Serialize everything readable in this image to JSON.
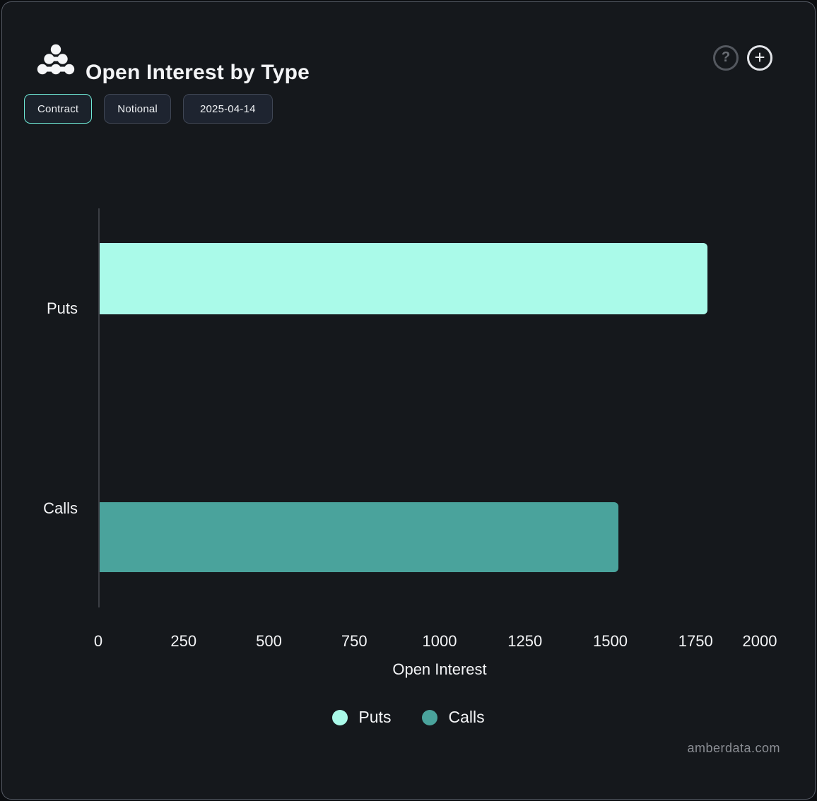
{
  "header": {
    "title": "Open Interest by Type",
    "help_glyph": "?",
    "add_glyph": "+"
  },
  "toolbar": {
    "buttons": [
      {
        "label": "Contract",
        "active": true
      },
      {
        "label": "Notional",
        "active": false
      },
      {
        "label": "2025-04-14",
        "active": false
      }
    ]
  },
  "watermark": "amberdata.com",
  "colors": {
    "card_background": "#15181c",
    "card_border": "#575c66",
    "puts": "#aafae9",
    "calls": "#4aa39c",
    "active_chip_border": "#6fe9d6",
    "axis_line": "#3b3e44",
    "text": "#f3f4f6"
  },
  "chart_data": {
    "type": "bar",
    "orientation": "horizontal",
    "title": "Open Interest by Type",
    "categories": [
      "Puts",
      "Calls"
    ],
    "series": [
      {
        "name": "Puts",
        "color": "#aafae9",
        "values": [
          1780,
          null
        ]
      },
      {
        "name": "Calls",
        "color": "#4aa39c",
        "values": [
          null,
          1520
        ]
      }
    ],
    "xlabel": "Open Interest",
    "xlim": [
      0,
      2000
    ],
    "xticks": [
      0,
      250,
      500,
      750,
      1000,
      1250,
      1500,
      1750,
      2000
    ],
    "grid": false,
    "legend": [
      "Puts",
      "Calls"
    ],
    "legend_position": "bottom",
    "date": "2025-04-14"
  }
}
